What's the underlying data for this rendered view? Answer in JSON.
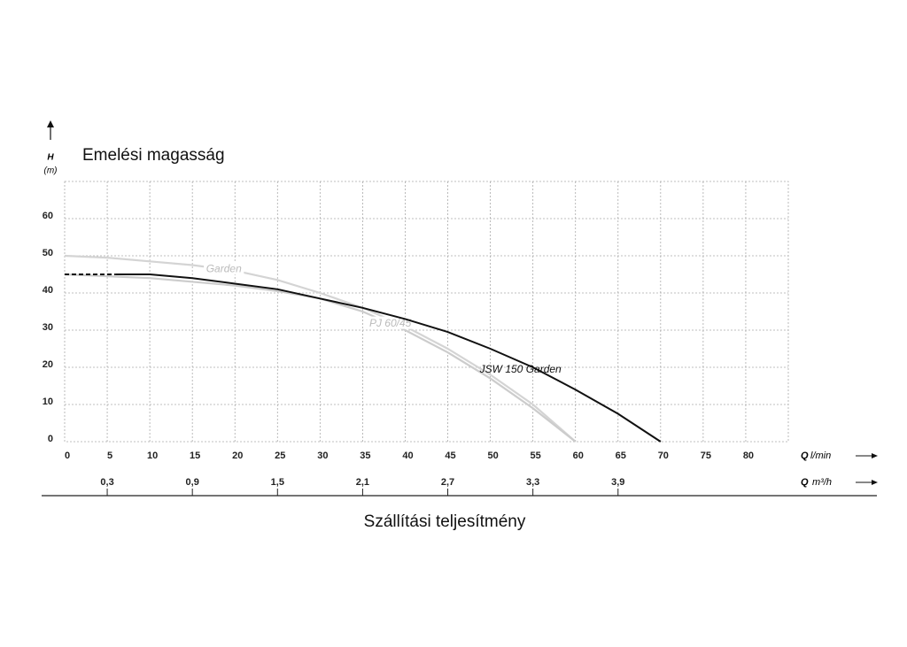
{
  "chart_data": {
    "type": "line",
    "title": "Emelési magasság",
    "y_symbol": "H",
    "y_unit": "(m)",
    "x_symbol": "Q",
    "x_unit": "l/min",
    "x2_symbol": "Q",
    "x2_unit": "m³/h",
    "x_title": "Szállítási teljesítmény",
    "xlim": [
      0,
      85
    ],
    "xticks": [
      0,
      5,
      10,
      15,
      20,
      25,
      30,
      35,
      40,
      45,
      50,
      55,
      60,
      65,
      70,
      75,
      80
    ],
    "x2lim": [
      0,
      5.1
    ],
    "x2ticks": [
      {
        "value": 0.3,
        "label": "0,3"
      },
      {
        "value": 0.9,
        "label": "0,9"
      },
      {
        "value": 1.5,
        "label": "1,5"
      },
      {
        "value": 2.1,
        "label": "2,1"
      },
      {
        "value": 2.7,
        "label": "2,7"
      },
      {
        "value": 3.3,
        "label": "3,3"
      },
      {
        "value": 3.9,
        "label": "3,9"
      }
    ],
    "ylim": [
      0,
      70
    ],
    "yticks": [
      0,
      10,
      20,
      30,
      40,
      50,
      60
    ],
    "grid": true,
    "series": [
      {
        "name": "Garden",
        "color": "#d4d4d4",
        "x": [
          0,
          5,
          10,
          15,
          20,
          25,
          30,
          35,
          40,
          45,
          50,
          55,
          60
        ],
        "values": [
          50,
          49.5,
          48.5,
          47.5,
          46,
          43.5,
          40,
          36,
          31,
          25,
          18,
          10,
          0
        ]
      },
      {
        "name": "PJ 60/45",
        "color": "#cccccc",
        "x": [
          0,
          10,
          20,
          25,
          30,
          35,
          40,
          45,
          50,
          55,
          60
        ],
        "values": [
          45,
          44,
          42,
          40.5,
          38.5,
          35,
          30,
          24,
          17,
          9,
          0
        ]
      },
      {
        "name": "JSW 150 Garden",
        "color": "#111111",
        "dashed_until_x": 6,
        "x": [
          0,
          6,
          10,
          15,
          20,
          25,
          30,
          35,
          40,
          45,
          50,
          55,
          60,
          65,
          70
        ],
        "values": [
          45,
          45,
          45,
          44,
          42.5,
          41,
          38.5,
          36,
          33,
          29.5,
          25,
          20,
          14,
          7.5,
          0
        ]
      }
    ]
  }
}
